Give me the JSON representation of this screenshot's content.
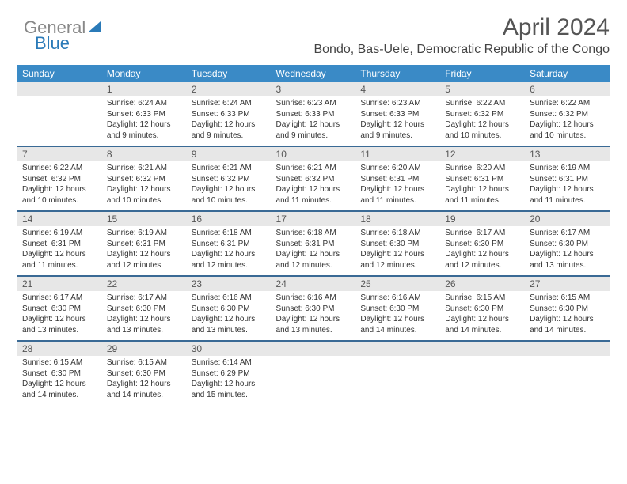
{
  "brand": {
    "part1": "General",
    "part2": "Blue"
  },
  "title": "April 2024",
  "subtitle": "Bondo, Bas-Uele, Democratic Republic of the Congo",
  "colors": {
    "header_bg": "#3a8ac6",
    "header_fg": "#ffffff",
    "row_divider": "#3a6a95",
    "daynum_bg": "#e7e7e7",
    "title_color": "#555555",
    "text_color": "#333333"
  },
  "weekdays": [
    "Sunday",
    "Monday",
    "Tuesday",
    "Wednesday",
    "Thursday",
    "Friday",
    "Saturday"
  ],
  "weeks": [
    [
      {
        "n": "",
        "sr": "",
        "ss": "",
        "dl": ""
      },
      {
        "n": "1",
        "sr": "Sunrise: 6:24 AM",
        "ss": "Sunset: 6:33 PM",
        "dl": "Daylight: 12 hours and 9 minutes."
      },
      {
        "n": "2",
        "sr": "Sunrise: 6:24 AM",
        "ss": "Sunset: 6:33 PM",
        "dl": "Daylight: 12 hours and 9 minutes."
      },
      {
        "n": "3",
        "sr": "Sunrise: 6:23 AM",
        "ss": "Sunset: 6:33 PM",
        "dl": "Daylight: 12 hours and 9 minutes."
      },
      {
        "n": "4",
        "sr": "Sunrise: 6:23 AM",
        "ss": "Sunset: 6:33 PM",
        "dl": "Daylight: 12 hours and 9 minutes."
      },
      {
        "n": "5",
        "sr": "Sunrise: 6:22 AM",
        "ss": "Sunset: 6:32 PM",
        "dl": "Daylight: 12 hours and 10 minutes."
      },
      {
        "n": "6",
        "sr": "Sunrise: 6:22 AM",
        "ss": "Sunset: 6:32 PM",
        "dl": "Daylight: 12 hours and 10 minutes."
      }
    ],
    [
      {
        "n": "7",
        "sr": "Sunrise: 6:22 AM",
        "ss": "Sunset: 6:32 PM",
        "dl": "Daylight: 12 hours and 10 minutes."
      },
      {
        "n": "8",
        "sr": "Sunrise: 6:21 AM",
        "ss": "Sunset: 6:32 PM",
        "dl": "Daylight: 12 hours and 10 minutes."
      },
      {
        "n": "9",
        "sr": "Sunrise: 6:21 AM",
        "ss": "Sunset: 6:32 PM",
        "dl": "Daylight: 12 hours and 10 minutes."
      },
      {
        "n": "10",
        "sr": "Sunrise: 6:21 AM",
        "ss": "Sunset: 6:32 PM",
        "dl": "Daylight: 12 hours and 11 minutes."
      },
      {
        "n": "11",
        "sr": "Sunrise: 6:20 AM",
        "ss": "Sunset: 6:31 PM",
        "dl": "Daylight: 12 hours and 11 minutes."
      },
      {
        "n": "12",
        "sr": "Sunrise: 6:20 AM",
        "ss": "Sunset: 6:31 PM",
        "dl": "Daylight: 12 hours and 11 minutes."
      },
      {
        "n": "13",
        "sr": "Sunrise: 6:19 AM",
        "ss": "Sunset: 6:31 PM",
        "dl": "Daylight: 12 hours and 11 minutes."
      }
    ],
    [
      {
        "n": "14",
        "sr": "Sunrise: 6:19 AM",
        "ss": "Sunset: 6:31 PM",
        "dl": "Daylight: 12 hours and 11 minutes."
      },
      {
        "n": "15",
        "sr": "Sunrise: 6:19 AM",
        "ss": "Sunset: 6:31 PM",
        "dl": "Daylight: 12 hours and 12 minutes."
      },
      {
        "n": "16",
        "sr": "Sunrise: 6:18 AM",
        "ss": "Sunset: 6:31 PM",
        "dl": "Daylight: 12 hours and 12 minutes."
      },
      {
        "n": "17",
        "sr": "Sunrise: 6:18 AM",
        "ss": "Sunset: 6:31 PM",
        "dl": "Daylight: 12 hours and 12 minutes."
      },
      {
        "n": "18",
        "sr": "Sunrise: 6:18 AM",
        "ss": "Sunset: 6:30 PM",
        "dl": "Daylight: 12 hours and 12 minutes."
      },
      {
        "n": "19",
        "sr": "Sunrise: 6:17 AM",
        "ss": "Sunset: 6:30 PM",
        "dl": "Daylight: 12 hours and 12 minutes."
      },
      {
        "n": "20",
        "sr": "Sunrise: 6:17 AM",
        "ss": "Sunset: 6:30 PM",
        "dl": "Daylight: 12 hours and 13 minutes."
      }
    ],
    [
      {
        "n": "21",
        "sr": "Sunrise: 6:17 AM",
        "ss": "Sunset: 6:30 PM",
        "dl": "Daylight: 12 hours and 13 minutes."
      },
      {
        "n": "22",
        "sr": "Sunrise: 6:17 AM",
        "ss": "Sunset: 6:30 PM",
        "dl": "Daylight: 12 hours and 13 minutes."
      },
      {
        "n": "23",
        "sr": "Sunrise: 6:16 AM",
        "ss": "Sunset: 6:30 PM",
        "dl": "Daylight: 12 hours and 13 minutes."
      },
      {
        "n": "24",
        "sr": "Sunrise: 6:16 AM",
        "ss": "Sunset: 6:30 PM",
        "dl": "Daylight: 12 hours and 13 minutes."
      },
      {
        "n": "25",
        "sr": "Sunrise: 6:16 AM",
        "ss": "Sunset: 6:30 PM",
        "dl": "Daylight: 12 hours and 14 minutes."
      },
      {
        "n": "26",
        "sr": "Sunrise: 6:15 AM",
        "ss": "Sunset: 6:30 PM",
        "dl": "Daylight: 12 hours and 14 minutes."
      },
      {
        "n": "27",
        "sr": "Sunrise: 6:15 AM",
        "ss": "Sunset: 6:30 PM",
        "dl": "Daylight: 12 hours and 14 minutes."
      }
    ],
    [
      {
        "n": "28",
        "sr": "Sunrise: 6:15 AM",
        "ss": "Sunset: 6:30 PM",
        "dl": "Daylight: 12 hours and 14 minutes."
      },
      {
        "n": "29",
        "sr": "Sunrise: 6:15 AM",
        "ss": "Sunset: 6:30 PM",
        "dl": "Daylight: 12 hours and 14 minutes."
      },
      {
        "n": "30",
        "sr": "Sunrise: 6:14 AM",
        "ss": "Sunset: 6:29 PM",
        "dl": "Daylight: 12 hours and 15 minutes."
      },
      {
        "n": "",
        "sr": "",
        "ss": "",
        "dl": ""
      },
      {
        "n": "",
        "sr": "",
        "ss": "",
        "dl": ""
      },
      {
        "n": "",
        "sr": "",
        "ss": "",
        "dl": ""
      },
      {
        "n": "",
        "sr": "",
        "ss": "",
        "dl": ""
      }
    ]
  ]
}
